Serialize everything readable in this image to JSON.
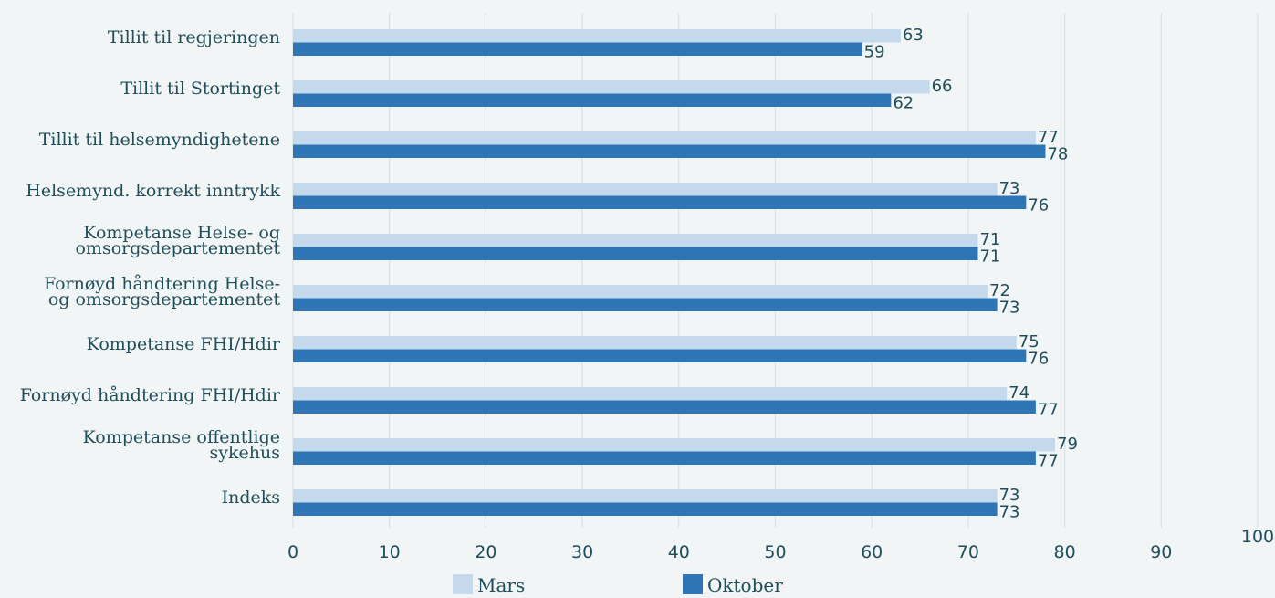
{
  "chart_data": {
    "type": "bar",
    "orientation": "horizontal",
    "categories": [
      [
        "Tillit til regjeringen"
      ],
      [
        "Tillit til Stortinget"
      ],
      [
        "Tillit til helsemyndighetene"
      ],
      [
        "Helsemynd. korrekt inntrykk"
      ],
      [
        "Kompetanse Helse- og",
        "omsorgsdepartementet"
      ],
      [
        "Fornøyd håndtering Helse-",
        "og omsorgsdepartementet"
      ],
      [
        "Kompetanse FHI/Hdir"
      ],
      [
        "Fornøyd håndtering FHI/Hdir"
      ],
      [
        "Kompetanse offentlige",
        "sykehus"
      ],
      [
        "Indeks"
      ]
    ],
    "series": [
      {
        "name": "Mars",
        "color": "#c5d9ec",
        "values": [
          63,
          66,
          77,
          73,
          71,
          72,
          75,
          74,
          79,
          73
        ]
      },
      {
        "name": "Oktober",
        "color": "#2e75b6",
        "values": [
          59,
          62,
          78,
          76,
          71,
          73,
          76,
          77,
          77,
          73
        ]
      }
    ],
    "xlim": [
      0,
      100
    ],
    "xticks": [
      0,
      10,
      20,
      30,
      40,
      50,
      60,
      70,
      80,
      90,
      100
    ],
    "grid": "vertical",
    "legend": "bottom",
    "gridColor": "#d6dde0",
    "textColor": "#1f4e5a"
  }
}
